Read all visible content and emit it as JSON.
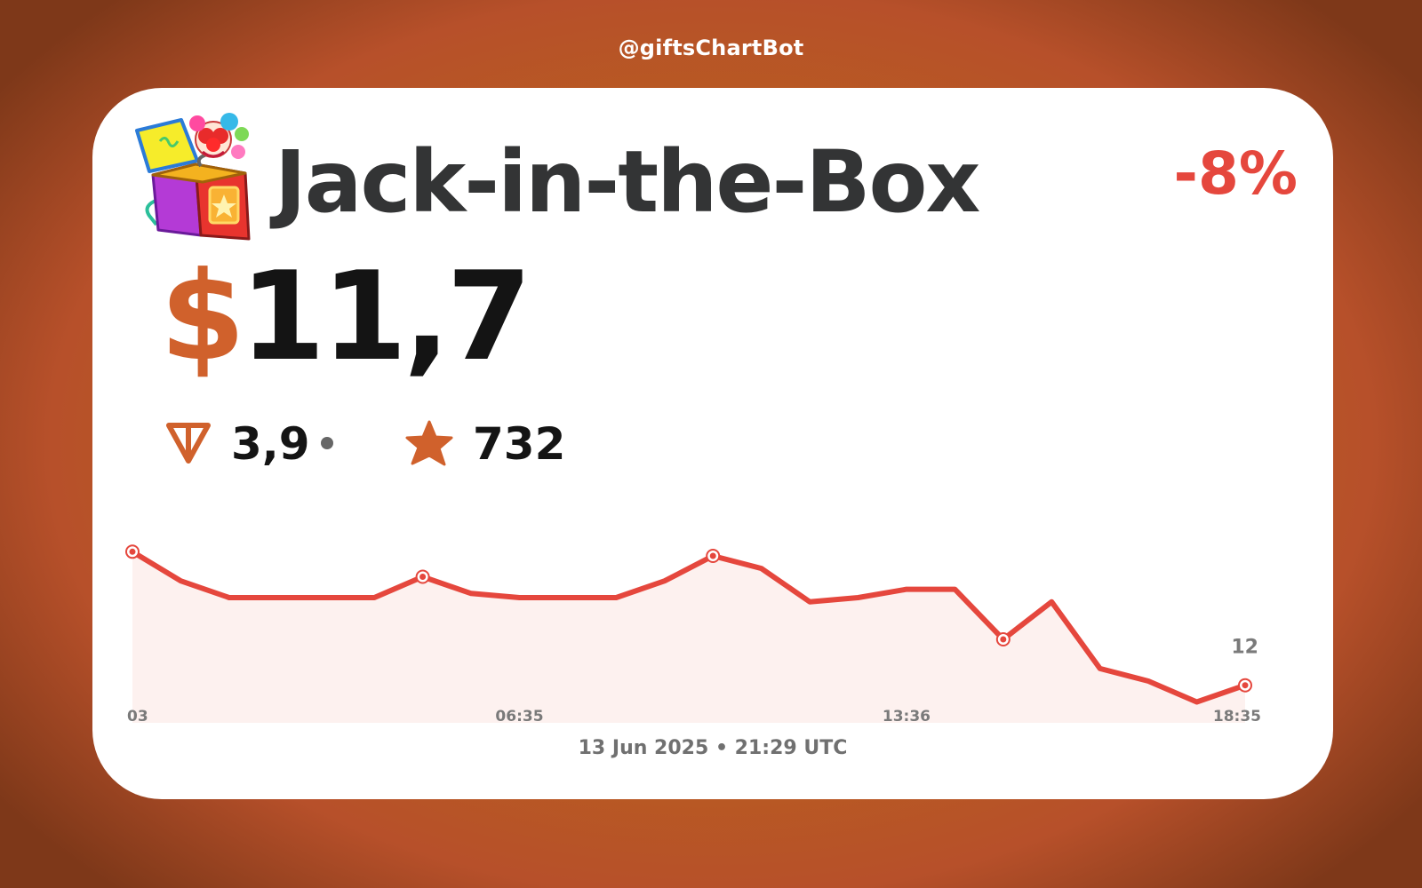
{
  "header": {
    "handle": "@giftsChartBot"
  },
  "gift": {
    "name": "Jack-in-the-Box",
    "change": "-8%",
    "usd_symbol": "$",
    "usd_price": "11,7",
    "ton_price": "3,9",
    "stars_price": "732",
    "icon": "jack-in-the-box-gift-icon"
  },
  "icons": {
    "ton": "ton-diamond-icon",
    "stars": "star-icon",
    "separator": "dot-icon"
  },
  "colors": {
    "accent": "#d0612c",
    "line": "#e5473d",
    "negative": "#e5473d",
    "area_fill": "#fdf1ef",
    "background_center": "#c0731a",
    "background_edge": "#7e3819"
  },
  "chart_data": {
    "type": "area",
    "x_tick_labels": [
      "03",
      "06:35",
      "13:36",
      "18:35"
    ],
    "end_value_label": "12",
    "values": [
      13.3,
      12.95,
      12.75,
      12.75,
      12.75,
      12.75,
      13.0,
      12.8,
      12.75,
      12.75,
      12.75,
      12.95,
      13.25,
      13.1,
      12.7,
      12.75,
      12.85,
      12.85,
      12.25,
      12.7,
      11.9,
      11.75,
      11.5,
      11.7
    ],
    "markers": [
      0,
      6,
      12,
      18,
      23
    ],
    "ylim": [
      11.25,
      13.75
    ],
    "grid": false,
    "legend": false
  },
  "footer": {
    "timestamp": "13 Jun 2025 • 21:29 UTC"
  }
}
